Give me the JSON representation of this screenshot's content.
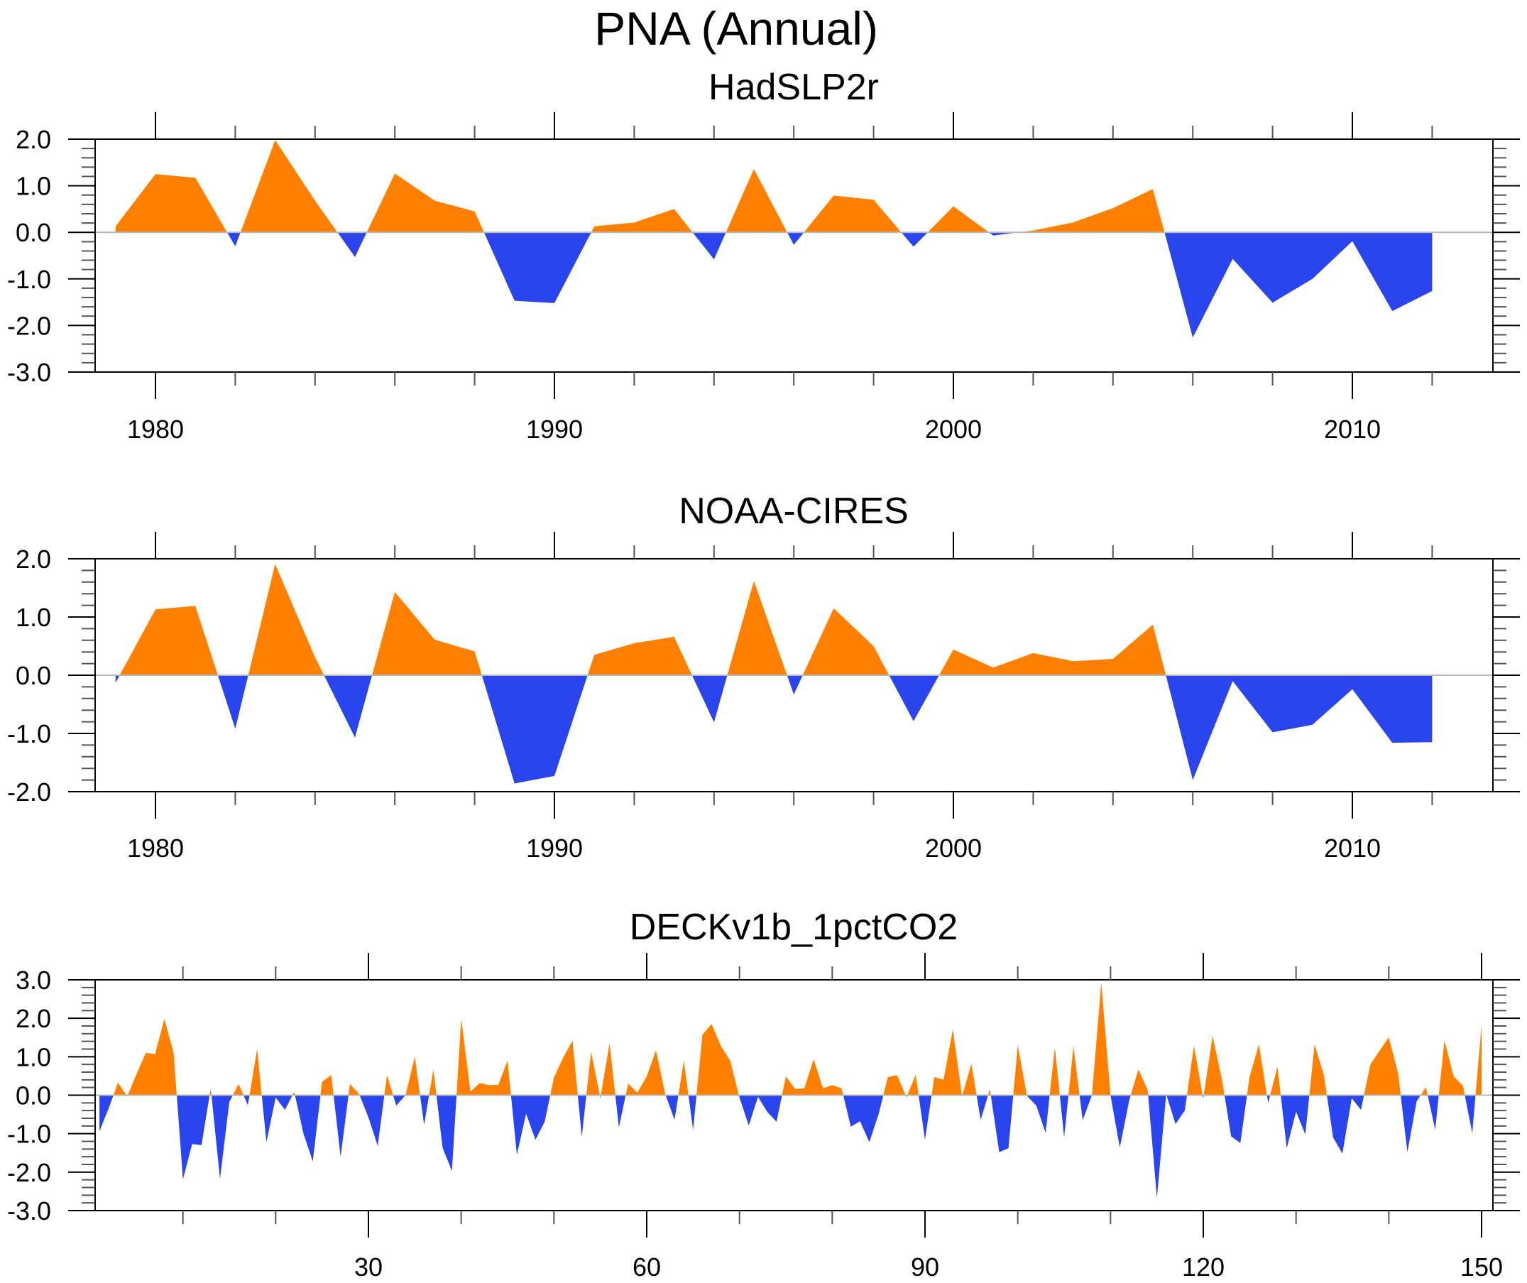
{
  "page_title": "PNA (Annual)",
  "colors": {
    "positive_fill": "#FF8000",
    "negative_fill": "#2A44EE",
    "zero_line": "#B8B8B8",
    "axis": "#000000"
  },
  "chart_data": [
    {
      "type": "area",
      "title": "HadSLP2r",
      "xlabel": "",
      "ylabel": "",
      "xlim": [
        1977.9,
        2014
      ],
      "ylim": [
        -3.0,
        2.0
      ],
      "x_major_ticks": [
        1980,
        1990,
        2000,
        2010
      ],
      "x_tick_labels": [
        "1980",
        "1990",
        "2000",
        "2010"
      ],
      "x_minor_step": 2,
      "y_major_ticks": [
        2.0,
        1.0,
        0.0,
        -1.0,
        -2.0,
        -3.0
      ],
      "y_tick_labels": [
        "2.0",
        "1.0",
        "0.0",
        "-1.0",
        "-2.0",
        "-3.0"
      ],
      "y_minor_step": 0.2,
      "reference_line": 0.0,
      "fill_above": "positive_fill",
      "fill_below": "negative_fill",
      "x": [
        1979,
        1980,
        1981,
        1982,
        1983,
        1984,
        1985,
        1986,
        1987,
        1988,
        1989,
        1990,
        1991,
        1992,
        1993,
        1994,
        1995,
        1996,
        1997,
        1998,
        1999,
        2000,
        2001,
        2002,
        2003,
        2004,
        2005,
        2006,
        2007,
        2008,
        2009,
        2010,
        2011,
        2012
      ],
      "values": [
        0.13,
        1.25,
        1.17,
        -0.3,
        1.98,
        0.68,
        -0.53,
        1.26,
        0.68,
        0.45,
        -1.47,
        -1.52,
        0.13,
        0.21,
        0.5,
        -0.58,
        1.36,
        -0.27,
        0.79,
        0.7,
        -0.31,
        0.56,
        -0.07,
        0.04,
        0.21,
        0.52,
        0.93,
        -2.26,
        -0.57,
        -1.51,
        -1.0,
        -0.19,
        -1.69,
        -1.26
      ]
    },
    {
      "type": "area",
      "title": "NOAA-CIRES",
      "xlabel": "",
      "ylabel": "",
      "xlim": [
        1977.9,
        2014
      ],
      "ylim": [
        -2.0,
        2.0
      ],
      "x_major_ticks": [
        1980,
        1990,
        2000,
        2010
      ],
      "x_tick_labels": [
        "1980",
        "1990",
        "2000",
        "2010"
      ],
      "x_minor_step": 2,
      "y_major_ticks": [
        2.0,
        1.0,
        0.0,
        -1.0,
        -2.0
      ],
      "y_tick_labels": [
        "2.0",
        "1.0",
        "0.0",
        "-1.0",
        "-2.0"
      ],
      "y_minor_step": 0.2,
      "reference_line": 0.0,
      "fill_above": "positive_fill",
      "fill_below": "negative_fill",
      "x": [
        1979,
        1980,
        1981,
        1982,
        1983,
        1984,
        1985,
        1986,
        1987,
        1988,
        1989,
        1990,
        1991,
        1992,
        1993,
        1994,
        1995,
        1996,
        1997,
        1998,
        1999,
        2000,
        2001,
        2002,
        2003,
        2004,
        2005,
        2006,
        2007,
        2008,
        2009,
        2010,
        2011,
        2012
      ],
      "values": [
        -0.13,
        1.13,
        1.19,
        -0.92,
        1.91,
        0.31,
        -1.07,
        1.43,
        0.61,
        0.41,
        -1.86,
        -1.73,
        0.35,
        0.55,
        0.66,
        -0.81,
        1.62,
        -0.33,
        1.15,
        0.5,
        -0.79,
        0.44,
        0.13,
        0.38,
        0.24,
        0.28,
        0.87,
        -1.8,
        -0.1,
        -0.98,
        -0.85,
        -0.24,
        -1.16,
        -1.15
      ]
    },
    {
      "type": "area",
      "title": "DECKv1b_1pctCO2",
      "xlabel": "",
      "ylabel": "",
      "xlim": [
        0.5,
        154.5
      ],
      "ylim": [
        -3.0,
        3.0
      ],
      "x_major_ticks": [
        30,
        60,
        90,
        120,
        150
      ],
      "x_tick_labels": [
        "30",
        "60",
        "90",
        "120",
        "150"
      ],
      "x_minor_step": 10,
      "y_major_ticks": [
        3.0,
        2.0,
        1.0,
        0.0,
        -1.0,
        -2.0,
        -3.0
      ],
      "y_tick_labels": [
        "3.0",
        "2.0",
        "1.0",
        "0.0",
        "-1.0",
        "-2.0",
        "-3.0"
      ],
      "y_minor_step": 0.2,
      "reference_line": 0.0,
      "fill_above": "positive_fill",
      "fill_below": "negative_fill",
      "x_start": 1,
      "x_step": 1,
      "values": [
        -0.94,
        -0.34,
        0.33,
        -0.03,
        0.55,
        1.1,
        1.07,
        1.98,
        1.1,
        -2.19,
        -1.27,
        -1.3,
        0.18,
        -2.18,
        -0.18,
        0.29,
        -0.26,
        1.2,
        -1.22,
        -0.06,
        -0.38,
        0.09,
        -1.0,
        -1.72,
        0.35,
        0.52,
        -1.6,
        0.29,
        0.03,
        -0.58,
        -1.32,
        0.52,
        -0.27,
        0.0,
        1.0,
        -0.77,
        0.67,
        -1.37,
        -1.97,
        1.99,
        0.09,
        0.32,
        0.26,
        0.27,
        0.9,
        -1.55,
        -0.48,
        -1.16,
        -0.69,
        0.46,
        0.98,
        1.42,
        -1.08,
        1.13,
        -0.07,
        1.35,
        -0.84,
        0.3,
        0.07,
        0.49,
        1.17,
        0.03,
        -0.64,
        0.9,
        -0.9,
        1.57,
        1.85,
        1.28,
        0.9,
        -0.06,
        -0.79,
        -0.04,
        -0.44,
        -0.69,
        0.49,
        0.16,
        0.18,
        0.94,
        0.18,
        0.26,
        0.18,
        -0.82,
        -0.68,
        -1.22,
        -0.49,
        0.47,
        0.52,
        -0.05,
        0.53,
        -1.16,
        0.47,
        0.4,
        1.71,
        -0.03,
        0.82,
        -0.64,
        0.16,
        -1.48,
        -1.38,
        1.3,
        -0.02,
        -0.27,
        -0.98,
        1.24,
        -1.1,
        1.27,
        -0.65,
        0.0,
        2.93,
        0.0,
        -1.36,
        -0.15,
        0.67,
        0.14,
        -2.67,
        0.03,
        -0.75,
        -0.4,
        1.29,
        -0.09,
        1.54,
        0.43,
        -1.07,
        -1.24,
        0.49,
        1.32,
        -0.2,
        0.74,
        -1.38,
        -0.43,
        -1.02,
        1.32,
        0.52,
        -1.1,
        -1.52,
        -0.08,
        -0.38,
        0.79,
        1.16,
        1.5,
        0.58,
        -1.48,
        -0.16,
        0.21,
        -0.9,
        1.42,
        0.49,
        0.24,
        -0.99,
        1.83
      ]
    }
  ]
}
